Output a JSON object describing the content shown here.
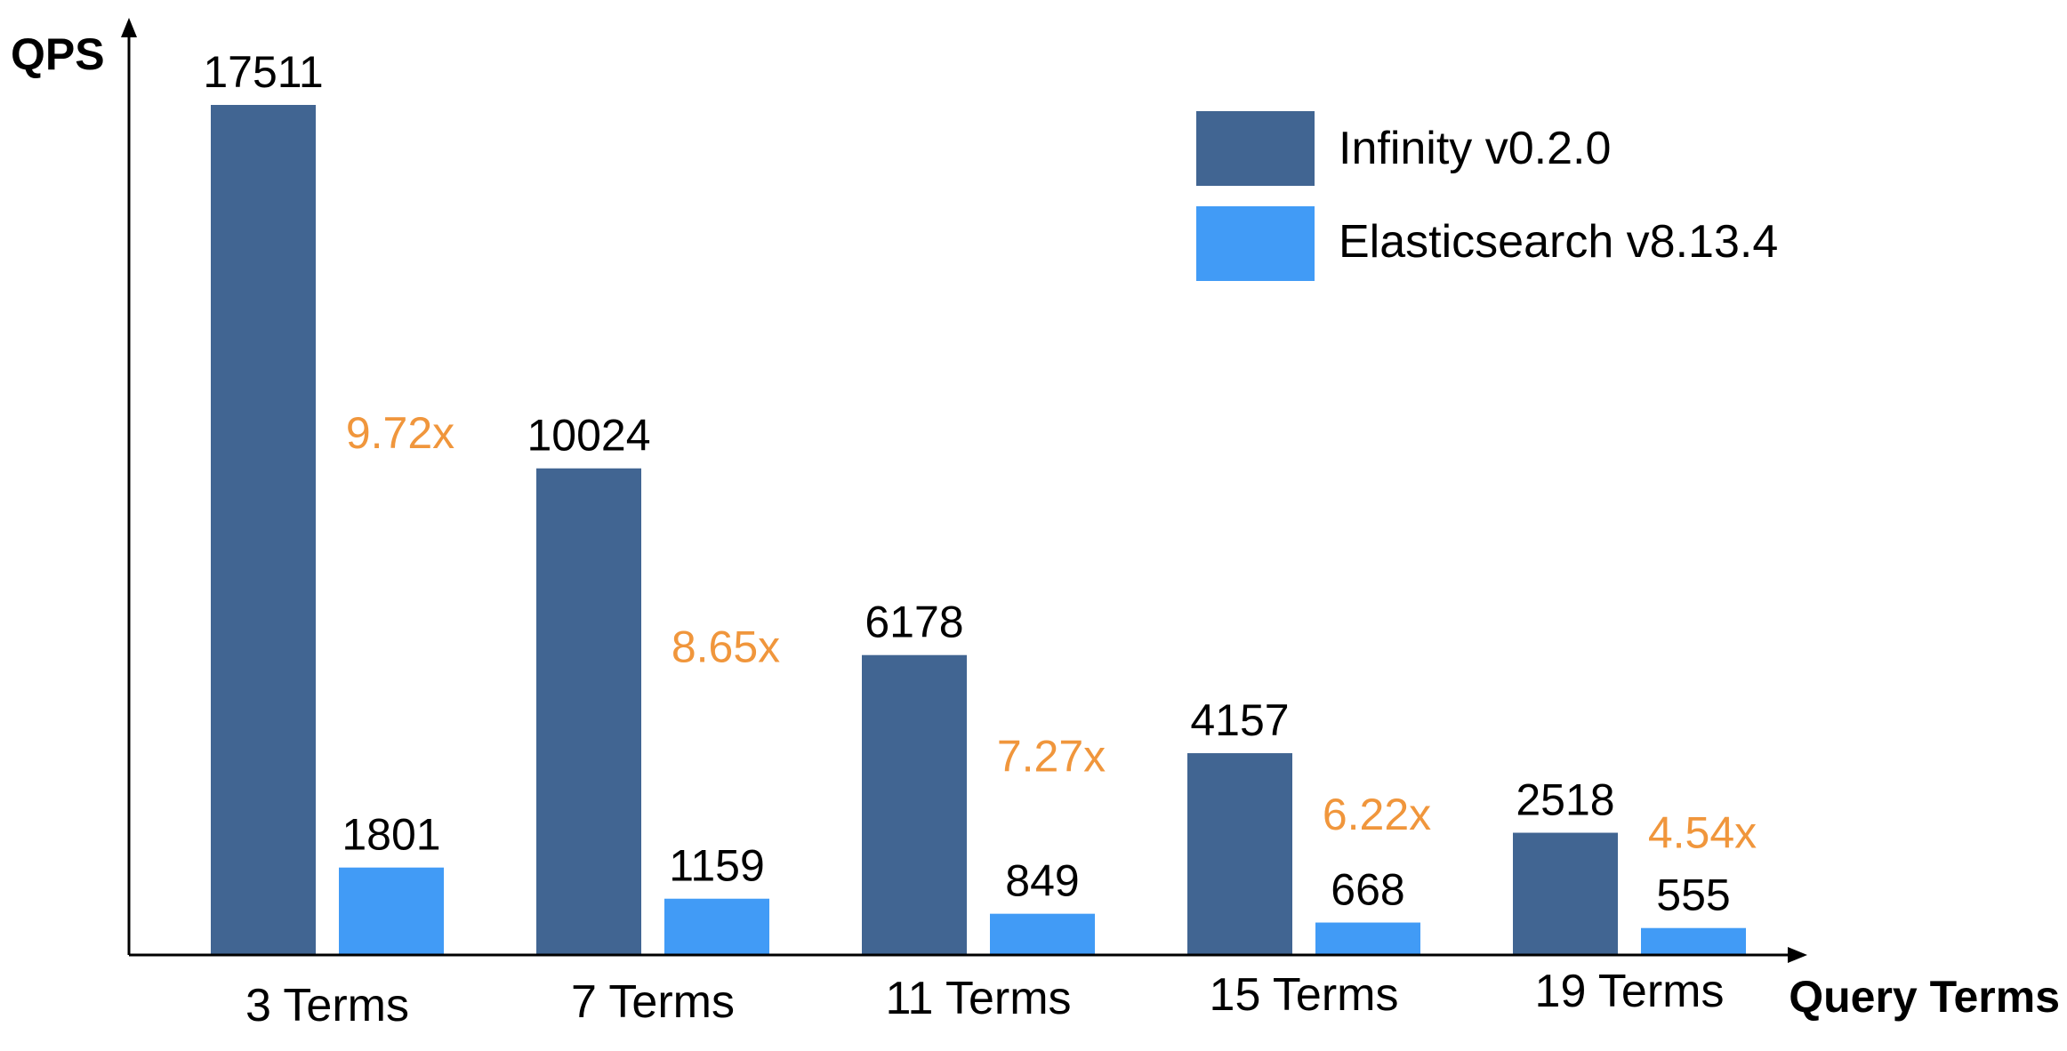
{
  "chart_data": {
    "type": "bar",
    "title": "",
    "xlabel": "Query Terms",
    "ylabel": "QPS",
    "ylim": [
      0,
      17511
    ],
    "grid": false,
    "legend_position": "top-right",
    "categories": [
      "3 Terms",
      "7 Terms",
      "11 Terms",
      "15 Terms",
      "19 Terms"
    ],
    "series": [
      {
        "name": "Infinity v0.2.0",
        "color": "#416592",
        "values": [
          17511,
          10024,
          6178,
          4157,
          2518
        ]
      },
      {
        "name": "Elasticsearch v8.13.4",
        "color": "#419BF6",
        "values": [
          1801,
          1159,
          849,
          668,
          555
        ]
      }
    ],
    "value_labels": [
      [
        "17511",
        "10024",
        "6178",
        "4157",
        "2518"
      ],
      [
        "1801",
        "1159",
        "849",
        "668",
        "555"
      ]
    ],
    "annotations": [
      "9.72x",
      "8.65x",
      "7.27x",
      "6.22x",
      "4.54x"
    ],
    "annotation_color": "#F0963C",
    "axis_color": "#000000"
  }
}
